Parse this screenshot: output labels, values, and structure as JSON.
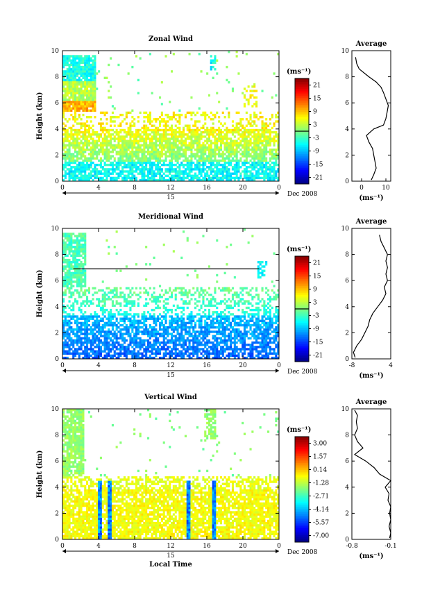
{
  "chart_data": [
    {
      "type": "heatmap",
      "title": "Zonal Wind",
      "xlabel": "",
      "ylabel": "Height (km)",
      "xlim": [
        0,
        24
      ],
      "ylim": [
        0,
        10
      ],
      "x_ticks": [
        "0",
        "4",
        "8",
        "12",
        "16",
        "20",
        "0"
      ],
      "y_ticks": [
        "0",
        "2",
        "4",
        "6",
        "8",
        "10"
      ],
      "date_labels": [
        "15",
        "Dec 2008"
      ],
      "colorbar": {
        "unit": "(ms⁻¹)",
        "ticks": [
          "21",
          "15",
          "9",
          "3",
          "-3",
          "-9",
          "-15",
          "-21"
        ],
        "min": -21,
        "max": 21
      },
      "average": {
        "title": "Average",
        "xlabel": "(ms⁻¹)",
        "x_ticks": [
          "0",
          "10"
        ],
        "xlim": [
          -4,
          12
        ],
        "y_ticks": [
          "0",
          "2",
          "4",
          "6",
          "8",
          "10"
        ],
        "profile": [
          [
            4,
            0.1
          ],
          [
            5,
            0.5
          ],
          [
            6,
            1.0
          ],
          [
            5.5,
            1.5
          ],
          [
            5,
            2.0
          ],
          [
            4.5,
            2.5
          ],
          [
            3,
            3.0
          ],
          [
            2,
            3.5
          ],
          [
            5,
            4.0
          ],
          [
            9,
            4.3
          ],
          [
            10,
            4.8
          ],
          [
            10.5,
            5.3
          ],
          [
            11,
            5.8
          ],
          [
            10,
            6.3
          ],
          [
            9,
            6.8
          ],
          [
            8,
            7.2
          ],
          [
            6,
            7.6
          ],
          [
            3,
            8.0
          ],
          [
            1,
            8.3
          ],
          [
            -1,
            8.6
          ],
          [
            -2,
            9.0
          ],
          [
            -2.5,
            9.5
          ]
        ]
      }
    },
    {
      "type": "heatmap",
      "title": "Meridional Wind",
      "xlabel": "",
      "ylabel": "Height (km)",
      "xlim": [
        0,
        24
      ],
      "ylim": [
        0,
        10
      ],
      "x_ticks": [
        "0",
        "4",
        "8",
        "12",
        "16",
        "20",
        "0"
      ],
      "y_ticks": [
        "0",
        "2",
        "4",
        "6",
        "8",
        "10"
      ],
      "date_labels": [
        "15",
        "Dec 2008"
      ],
      "colorbar": {
        "unit": "(ms⁻¹)",
        "ticks": [
          "21",
          "15",
          "9",
          "3",
          "-3",
          "-9",
          "-15",
          "-21"
        ],
        "min": -21,
        "max": 21
      },
      "average": {
        "title": "Average",
        "xlabel": "(ms⁻¹)",
        "x_ticks": [
          "-8",
          "4"
        ],
        "xlim": [
          -8,
          4
        ],
        "y_ticks": [
          "0",
          "2",
          "4",
          "6",
          "8",
          "10"
        ],
        "profile": [
          [
            -7,
            0.1
          ],
          [
            -7.5,
            0.5
          ],
          [
            -6.5,
            1.0
          ],
          [
            -5,
            1.5
          ],
          [
            -4,
            2.0
          ],
          [
            -3,
            2.5
          ],
          [
            -2.5,
            3.0
          ],
          [
            -1.5,
            3.5
          ],
          [
            0,
            4.0
          ],
          [
            1.5,
            4.5
          ],
          [
            2.5,
            5.0
          ],
          [
            2,
            5.5
          ],
          [
            3,
            6.0
          ],
          [
            2.5,
            6.5
          ],
          [
            3,
            7.0
          ],
          [
            2.5,
            7.5
          ],
          [
            3,
            8.0
          ],
          [
            2,
            8.5
          ],
          [
            1,
            9.0
          ],
          [
            0.5,
            9.5
          ]
        ]
      }
    },
    {
      "type": "heatmap",
      "title": "Vertical Wind",
      "xlabel": "Local Time",
      "ylabel": "Height (km)",
      "xlim": [
        0,
        24
      ],
      "ylim": [
        0,
        10
      ],
      "x_ticks": [
        "0",
        "4",
        "8",
        "12",
        "16",
        "20",
        "0"
      ],
      "y_ticks": [
        "0",
        "2",
        "4",
        "6",
        "8",
        "10"
      ],
      "date_labels": [
        "15",
        "Dec 2008"
      ],
      "colorbar": {
        "unit": "(ms⁻¹)",
        "ticks": [
          "3.00",
          "1.57",
          "0.14",
          "-1.28",
          "-2.71",
          "-4.14",
          "-5.57",
          "-7.00"
        ],
        "min": -7,
        "max": 3
      },
      "average": {
        "title": "Average",
        "xlabel": "(ms⁻¹)",
        "x_ticks": [
          "-0.8",
          "-0.1"
        ],
        "xlim": [
          -0.8,
          -0.1
        ],
        "y_ticks": [
          "0",
          "2",
          "4",
          "6",
          "8",
          "10"
        ],
        "profile": [
          [
            -0.12,
            0.1
          ],
          [
            -0.1,
            0.5
          ],
          [
            -0.13,
            1.0
          ],
          [
            -0.1,
            1.5
          ],
          [
            -0.12,
            2.0
          ],
          [
            -0.1,
            2.5
          ],
          [
            -0.15,
            3.0
          ],
          [
            -0.13,
            3.5
          ],
          [
            -0.2,
            4.0
          ],
          [
            -0.1,
            4.5
          ],
          [
            -0.3,
            5.0
          ],
          [
            -0.4,
            5.5
          ],
          [
            -0.55,
            6.0
          ],
          [
            -0.75,
            6.5
          ],
          [
            -0.6,
            7.0
          ],
          [
            -0.7,
            7.5
          ],
          [
            -0.75,
            8.0
          ],
          [
            -0.7,
            8.5
          ],
          [
            -0.72,
            9.0
          ],
          [
            -0.7,
            9.5
          ],
          [
            -0.75,
            9.9
          ]
        ]
      }
    }
  ]
}
